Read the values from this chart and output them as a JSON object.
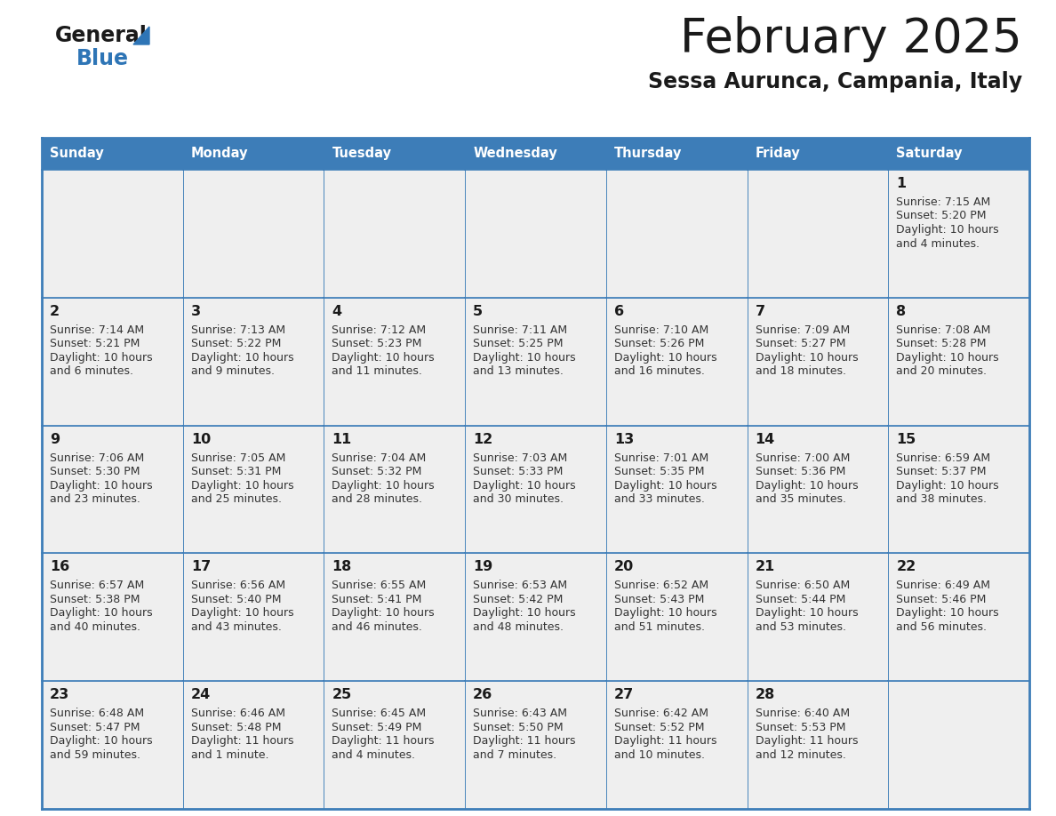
{
  "title": "February 2025",
  "subtitle": "Sessa Aurunca, Campania, Italy",
  "days_of_week": [
    "Sunday",
    "Monday",
    "Tuesday",
    "Wednesday",
    "Thursday",
    "Friday",
    "Saturday"
  ],
  "header_bg_color": "#3D7DB8",
  "header_text_color": "#FFFFFF",
  "cell_bg_color": "#EFEFEF",
  "border_color": "#3D7DB8",
  "day_number_color": "#1a1a1a",
  "text_color": "#333333",
  "title_color": "#1a1a1a",
  "subtitle_color": "#1a1a1a",
  "logo_general_color": "#1a1a1a",
  "logo_blue_color": "#2E75B6",
  "logo_triangle_color": "#2E75B6",
  "calendar_data": [
    [
      null,
      null,
      null,
      null,
      null,
      null,
      {
        "day": 1,
        "sunrise": "7:15 AM",
        "sunset": "5:20 PM",
        "daylight_line1": "Daylight: 10 hours",
        "daylight_line2": "and 4 minutes."
      }
    ],
    [
      {
        "day": 2,
        "sunrise": "7:14 AM",
        "sunset": "5:21 PM",
        "daylight_line1": "Daylight: 10 hours",
        "daylight_line2": "and 6 minutes."
      },
      {
        "day": 3,
        "sunrise": "7:13 AM",
        "sunset": "5:22 PM",
        "daylight_line1": "Daylight: 10 hours",
        "daylight_line2": "and 9 minutes."
      },
      {
        "day": 4,
        "sunrise": "7:12 AM",
        "sunset": "5:23 PM",
        "daylight_line1": "Daylight: 10 hours",
        "daylight_line2": "and 11 minutes."
      },
      {
        "day": 5,
        "sunrise": "7:11 AM",
        "sunset": "5:25 PM",
        "daylight_line1": "Daylight: 10 hours",
        "daylight_line2": "and 13 minutes."
      },
      {
        "day": 6,
        "sunrise": "7:10 AM",
        "sunset": "5:26 PM",
        "daylight_line1": "Daylight: 10 hours",
        "daylight_line2": "and 16 minutes."
      },
      {
        "day": 7,
        "sunrise": "7:09 AM",
        "sunset": "5:27 PM",
        "daylight_line1": "Daylight: 10 hours",
        "daylight_line2": "and 18 minutes."
      },
      {
        "day": 8,
        "sunrise": "7:08 AM",
        "sunset": "5:28 PM",
        "daylight_line1": "Daylight: 10 hours",
        "daylight_line2": "and 20 minutes."
      }
    ],
    [
      {
        "day": 9,
        "sunrise": "7:06 AM",
        "sunset": "5:30 PM",
        "daylight_line1": "Daylight: 10 hours",
        "daylight_line2": "and 23 minutes."
      },
      {
        "day": 10,
        "sunrise": "7:05 AM",
        "sunset": "5:31 PM",
        "daylight_line1": "Daylight: 10 hours",
        "daylight_line2": "and 25 minutes."
      },
      {
        "day": 11,
        "sunrise": "7:04 AM",
        "sunset": "5:32 PM",
        "daylight_line1": "Daylight: 10 hours",
        "daylight_line2": "and 28 minutes."
      },
      {
        "day": 12,
        "sunrise": "7:03 AM",
        "sunset": "5:33 PM",
        "daylight_line1": "Daylight: 10 hours",
        "daylight_line2": "and 30 minutes."
      },
      {
        "day": 13,
        "sunrise": "7:01 AM",
        "sunset": "5:35 PM",
        "daylight_line1": "Daylight: 10 hours",
        "daylight_line2": "and 33 minutes."
      },
      {
        "day": 14,
        "sunrise": "7:00 AM",
        "sunset": "5:36 PM",
        "daylight_line1": "Daylight: 10 hours",
        "daylight_line2": "and 35 minutes."
      },
      {
        "day": 15,
        "sunrise": "6:59 AM",
        "sunset": "5:37 PM",
        "daylight_line1": "Daylight: 10 hours",
        "daylight_line2": "and 38 minutes."
      }
    ],
    [
      {
        "day": 16,
        "sunrise": "6:57 AM",
        "sunset": "5:38 PM",
        "daylight_line1": "Daylight: 10 hours",
        "daylight_line2": "and 40 minutes."
      },
      {
        "day": 17,
        "sunrise": "6:56 AM",
        "sunset": "5:40 PM",
        "daylight_line1": "Daylight: 10 hours",
        "daylight_line2": "and 43 minutes."
      },
      {
        "day": 18,
        "sunrise": "6:55 AM",
        "sunset": "5:41 PM",
        "daylight_line1": "Daylight: 10 hours",
        "daylight_line2": "and 46 minutes."
      },
      {
        "day": 19,
        "sunrise": "6:53 AM",
        "sunset": "5:42 PM",
        "daylight_line1": "Daylight: 10 hours",
        "daylight_line2": "and 48 minutes."
      },
      {
        "day": 20,
        "sunrise": "6:52 AM",
        "sunset": "5:43 PM",
        "daylight_line1": "Daylight: 10 hours",
        "daylight_line2": "and 51 minutes."
      },
      {
        "day": 21,
        "sunrise": "6:50 AM",
        "sunset": "5:44 PM",
        "daylight_line1": "Daylight: 10 hours",
        "daylight_line2": "and 53 minutes."
      },
      {
        "day": 22,
        "sunrise": "6:49 AM",
        "sunset": "5:46 PM",
        "daylight_line1": "Daylight: 10 hours",
        "daylight_line2": "and 56 minutes."
      }
    ],
    [
      {
        "day": 23,
        "sunrise": "6:48 AM",
        "sunset": "5:47 PM",
        "daylight_line1": "Daylight: 10 hours",
        "daylight_line2": "and 59 minutes."
      },
      {
        "day": 24,
        "sunrise": "6:46 AM",
        "sunset": "5:48 PM",
        "daylight_line1": "Daylight: 11 hours",
        "daylight_line2": "and 1 minute."
      },
      {
        "day": 25,
        "sunrise": "6:45 AM",
        "sunset": "5:49 PM",
        "daylight_line1": "Daylight: 11 hours",
        "daylight_line2": "and 4 minutes."
      },
      {
        "day": 26,
        "sunrise": "6:43 AM",
        "sunset": "5:50 PM",
        "daylight_line1": "Daylight: 11 hours",
        "daylight_line2": "and 7 minutes."
      },
      {
        "day": 27,
        "sunrise": "6:42 AM",
        "sunset": "5:52 PM",
        "daylight_line1": "Daylight: 11 hours",
        "daylight_line2": "and 10 minutes."
      },
      {
        "day": 28,
        "sunrise": "6:40 AM",
        "sunset": "5:53 PM",
        "daylight_line1": "Daylight: 11 hours",
        "daylight_line2": "and 12 minutes."
      },
      null
    ]
  ]
}
